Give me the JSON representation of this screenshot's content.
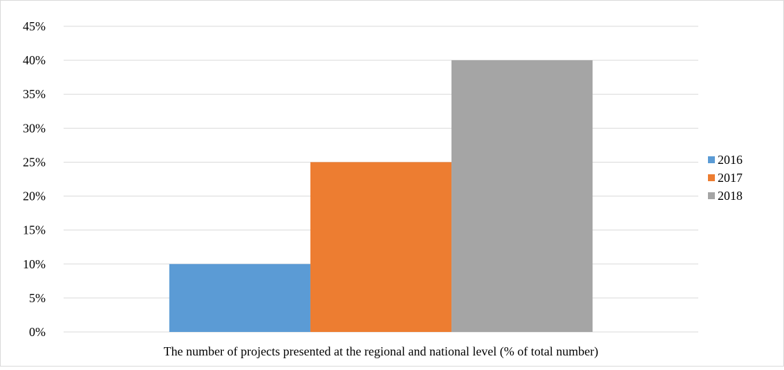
{
  "chart_data": {
    "type": "bar",
    "categories": [
      "The number of projects presented at the regional and national level (% of total number)"
    ],
    "series": [
      {
        "name": "2016",
        "values": [
          10
        ],
        "color": "#5B9BD5"
      },
      {
        "name": "2017",
        "values": [
          25
        ],
        "color": "#ED7D31"
      },
      {
        "name": "2018",
        "values": [
          40
        ],
        "color": "#A5A5A5"
      }
    ],
    "ylim": [
      0,
      45
    ],
    "yticks": [
      "0%",
      "5%",
      "10%",
      "15%",
      "20%",
      "25%",
      "30%",
      "35%",
      "40%",
      "45%"
    ],
    "grid": true,
    "legend_position": "right",
    "title": "",
    "xlabel": "",
    "ylabel": ""
  }
}
